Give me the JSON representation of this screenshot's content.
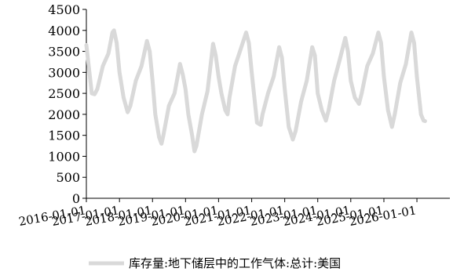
{
  "chart_data": {
    "type": "line",
    "title": "",
    "xlabel": "",
    "ylabel": "",
    "ylim": [
      0,
      4500
    ],
    "yticks": [
      "0",
      "500",
      "1000",
      "1500",
      "2000",
      "2500",
      "3000",
      "3500",
      "4000",
      "4500"
    ],
    "xlim": [
      "2016-01-01",
      "2026-12-31"
    ],
    "xticks": [
      "2016-01-01",
      "2017-01-01",
      "2018-01-01",
      "2019-01-01",
      "2020-01-01",
      "2021-01-01",
      "2022-01-01",
      "2023-01-01",
      "2024-01-01",
      "2025-01-01",
      "2026-01-01"
    ],
    "grid": false,
    "legend_position": "bottom",
    "series": [
      {
        "name": "库存量:地下储层中的工作气体:总计:美国",
        "color": "#d9d9d9",
        "points": [
          [
            "2016-01-01",
            3650
          ],
          [
            "2016-03-01",
            2500
          ],
          [
            "2016-04-01",
            2480
          ],
          [
            "2016-05-01",
            2600
          ],
          [
            "2016-07-01",
            3150
          ],
          [
            "2016-09-01",
            3450
          ],
          [
            "2016-10-15",
            3950
          ],
          [
            "2016-11-01",
            4000
          ],
          [
            "2016-12-01",
            3700
          ],
          [
            "2017-01-01",
            3000
          ],
          [
            "2017-02-15",
            2400
          ],
          [
            "2017-04-01",
            2050
          ],
          [
            "2017-05-01",
            2200
          ],
          [
            "2017-07-01",
            2800
          ],
          [
            "2017-09-01",
            3150
          ],
          [
            "2017-11-01",
            3750
          ],
          [
            "2017-12-01",
            3500
          ],
          [
            "2018-01-01",
            2800
          ],
          [
            "2018-02-01",
            2000
          ],
          [
            "2018-03-15",
            1450
          ],
          [
            "2018-04-10",
            1300
          ],
          [
            "2018-05-01",
            1500
          ],
          [
            "2018-07-01",
            2200
          ],
          [
            "2018-09-01",
            2500
          ],
          [
            "2018-11-01",
            3200
          ],
          [
            "2018-12-01",
            2950
          ],
          [
            "2019-01-01",
            2600
          ],
          [
            "2019-02-01",
            2000
          ],
          [
            "2019-03-15",
            1500
          ],
          [
            "2019-04-10",
            1120
          ],
          [
            "2019-05-01",
            1250
          ],
          [
            "2019-07-01",
            2000
          ],
          [
            "2019-09-01",
            2550
          ],
          [
            "2019-11-01",
            3680
          ],
          [
            "2019-12-01",
            3400
          ],
          [
            "2020-01-01",
            2900
          ],
          [
            "2020-02-01",
            2500
          ],
          [
            "2020-03-15",
            2100
          ],
          [
            "2020-04-10",
            2000
          ],
          [
            "2020-05-01",
            2400
          ],
          [
            "2020-07-01",
            3150
          ],
          [
            "2020-09-01",
            3550
          ],
          [
            "2020-11-01",
            3950
          ],
          [
            "2020-12-01",
            3700
          ],
          [
            "2021-01-01",
            3000
          ],
          [
            "2021-03-01",
            1800
          ],
          [
            "2021-04-10",
            1750
          ],
          [
            "2021-05-01",
            2000
          ],
          [
            "2021-07-01",
            2500
          ],
          [
            "2021-09-01",
            2900
          ],
          [
            "2021-11-01",
            3600
          ],
          [
            "2021-12-01",
            3350
          ],
          [
            "2022-01-01",
            2600
          ],
          [
            "2022-02-15",
            1700
          ],
          [
            "2022-04-01",
            1400
          ],
          [
            "2022-05-01",
            1600
          ],
          [
            "2022-07-01",
            2300
          ],
          [
            "2022-09-01",
            2800
          ],
          [
            "2022-11-01",
            3600
          ],
          [
            "2022-12-01",
            3400
          ],
          [
            "2023-01-01",
            2500
          ],
          [
            "2023-02-15",
            2100
          ],
          [
            "2023-04-01",
            1850
          ],
          [
            "2023-05-01",
            2100
          ],
          [
            "2023-07-01",
            2800
          ],
          [
            "2023-09-01",
            3300
          ],
          [
            "2023-11-01",
            3820
          ],
          [
            "2023-12-01",
            3500
          ],
          [
            "2024-01-01",
            2800
          ],
          [
            "2024-02-15",
            2400
          ],
          [
            "2024-04-01",
            2250
          ],
          [
            "2024-05-01",
            2500
          ],
          [
            "2024-07-01",
            3150
          ],
          [
            "2024-09-01",
            3450
          ],
          [
            "2024-11-01",
            3950
          ],
          [
            "2024-12-01",
            3700
          ],
          [
            "2025-01-01",
            2900
          ],
          [
            "2025-02-15",
            2100
          ],
          [
            "2025-04-01",
            1700
          ],
          [
            "2025-05-01",
            2000
          ],
          [
            "2025-07-01",
            2750
          ],
          [
            "2025-09-01",
            3200
          ],
          [
            "2025-11-01",
            3950
          ],
          [
            "2025-12-01",
            3700
          ],
          [
            "2026-01-01",
            2900
          ],
          [
            "2026-02-15",
            2000
          ],
          [
            "2026-03-15",
            1850
          ],
          [
            "2026-04-01",
            1840
          ]
        ]
      }
    ]
  }
}
